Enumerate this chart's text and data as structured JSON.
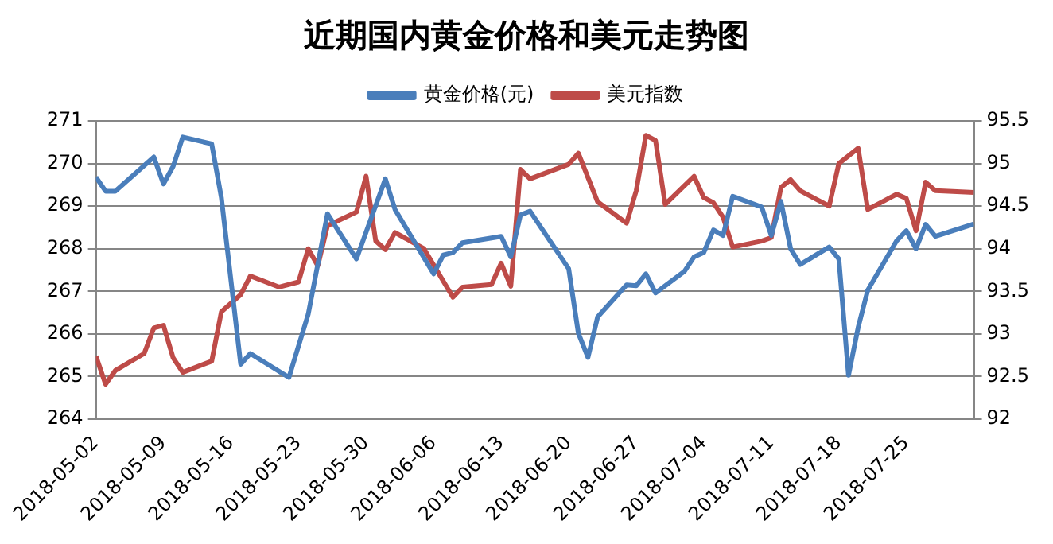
{
  "chart_data": {
    "type": "line",
    "title": "近期国内黄金价格和美元走势图",
    "legend": "top",
    "grid": "y",
    "marker": "none",
    "line_style": "solid",
    "xlim": [
      "2018-05-02",
      "2018-08-01"
    ],
    "xticks": [
      "2018-05-02",
      "2018-05-09",
      "2018-05-16",
      "2018-05-23",
      "2018-05-30",
      "2018-06-06",
      "2018-06-13",
      "2018-06-20",
      "2018-06-27",
      "2018-07-04",
      "2018-07-11",
      "2018-07-18",
      "2018-07-25"
    ],
    "ylim": [
      264,
      271
    ],
    "yticks": [
      264,
      265,
      266,
      267,
      268,
      269,
      270,
      271
    ],
    "y2lim": [
      92,
      95.5
    ],
    "y2ticks": [
      92,
      92.5,
      93,
      93.5,
      94,
      94.5,
      95,
      95.5
    ],
    "series": [
      {
        "name": "黄金价格(元)",
        "color": "#4a7ebb",
        "x": [
          "2018-05-02",
          "2018-05-03",
          "2018-05-04",
          "2018-05-08",
          "2018-05-09",
          "2018-05-10",
          "2018-05-11",
          "2018-05-14",
          "2018-05-15",
          "2018-05-17",
          "2018-05-18",
          "2018-05-22",
          "2018-05-24",
          "2018-05-26",
          "2018-05-29",
          "2018-06-01",
          "2018-06-02",
          "2018-06-06",
          "2018-06-07",
          "2018-06-08",
          "2018-06-09",
          "2018-06-13",
          "2018-06-14",
          "2018-06-15",
          "2018-06-16",
          "2018-06-20",
          "2018-06-21",
          "2018-06-22",
          "2018-06-23",
          "2018-06-26",
          "2018-06-27",
          "2018-06-28",
          "2018-06-29",
          "2018-07-02",
          "2018-07-03",
          "2018-07-04",
          "2018-07-05",
          "2018-07-06",
          "2018-07-07",
          "2018-07-10",
          "2018-07-11",
          "2018-07-12",
          "2018-07-13",
          "2018-07-14",
          "2018-07-17",
          "2018-07-18",
          "2018-07-19",
          "2018-07-20",
          "2018-07-21",
          "2018-07-24",
          "2018-07-25",
          "2018-07-26",
          "2018-07-27",
          "2018-07-28",
          "2018-08-01"
        ],
        "values": [
          269.68,
          269.35,
          269.35,
          270.15,
          269.52,
          269.93,
          270.62,
          270.46,
          269.2,
          265.29,
          265.54,
          264.98,
          266.46,
          268.82,
          267.76,
          269.64,
          268.92,
          267.41,
          267.85,
          267.91,
          268.14,
          268.29,
          267.81,
          268.79,
          268.88,
          267.53,
          266.02,
          265.45,
          266.4,
          267.15,
          267.13,
          267.41,
          266.96,
          267.47,
          267.81,
          267.91,
          268.44,
          268.31,
          269.23,
          268.98,
          268.31,
          269.11,
          268.0,
          267.63,
          268.04,
          267.76,
          265.03,
          266.15,
          267.03,
          268.19,
          268.42,
          268.0,
          268.57,
          268.29,
          268.58
        ]
      },
      {
        "name": "美元指数",
        "color": "#be4b48",
        "axis": "y2",
        "x": [
          "2018-05-02",
          "2018-05-03",
          "2018-05-04",
          "2018-05-07",
          "2018-05-08",
          "2018-05-09",
          "2018-05-10",
          "2018-05-11",
          "2018-05-14",
          "2018-05-15",
          "2018-05-17",
          "2018-05-18",
          "2018-05-21",
          "2018-05-23",
          "2018-05-24",
          "2018-05-25",
          "2018-05-26",
          "2018-05-29",
          "2018-05-30",
          "2018-05-31",
          "2018-06-01",
          "2018-06-02",
          "2018-06-05",
          "2018-06-08",
          "2018-06-09",
          "2018-06-12",
          "2018-06-13",
          "2018-06-14",
          "2018-06-15",
          "2018-06-16",
          "2018-06-20",
          "2018-06-21",
          "2018-06-23",
          "2018-06-26",
          "2018-06-27",
          "2018-06-28",
          "2018-06-29",
          "2018-06-30",
          "2018-07-03",
          "2018-07-04",
          "2018-07-05",
          "2018-07-06",
          "2018-07-07",
          "2018-07-10",
          "2018-07-11",
          "2018-07-12",
          "2018-07-13",
          "2018-07-14",
          "2018-07-17",
          "2018-07-18",
          "2018-07-20",
          "2018-07-21",
          "2018-07-24",
          "2018-07-25",
          "2018-07-26",
          "2018-07-27",
          "2018-07-28",
          "2018-08-01"
        ],
        "values": [
          92.74,
          92.41,
          92.57,
          92.77,
          93.07,
          93.1,
          92.72,
          92.55,
          92.68,
          93.26,
          93.46,
          93.68,
          93.55,
          93.61,
          94.0,
          93.8,
          94.27,
          94.43,
          94.85,
          94.09,
          93.99,
          94.19,
          94.0,
          93.43,
          93.55,
          93.58,
          93.83,
          93.56,
          94.93,
          94.82,
          94.99,
          95.12,
          94.55,
          94.3,
          94.68,
          95.33,
          95.27,
          94.52,
          94.85,
          94.6,
          94.54,
          94.37,
          94.02,
          94.09,
          94.13,
          94.72,
          94.81,
          94.68,
          94.5,
          95.0,
          95.18,
          94.46,
          94.64,
          94.59,
          94.21,
          94.78,
          94.68,
          94.66
        ]
      }
    ]
  }
}
